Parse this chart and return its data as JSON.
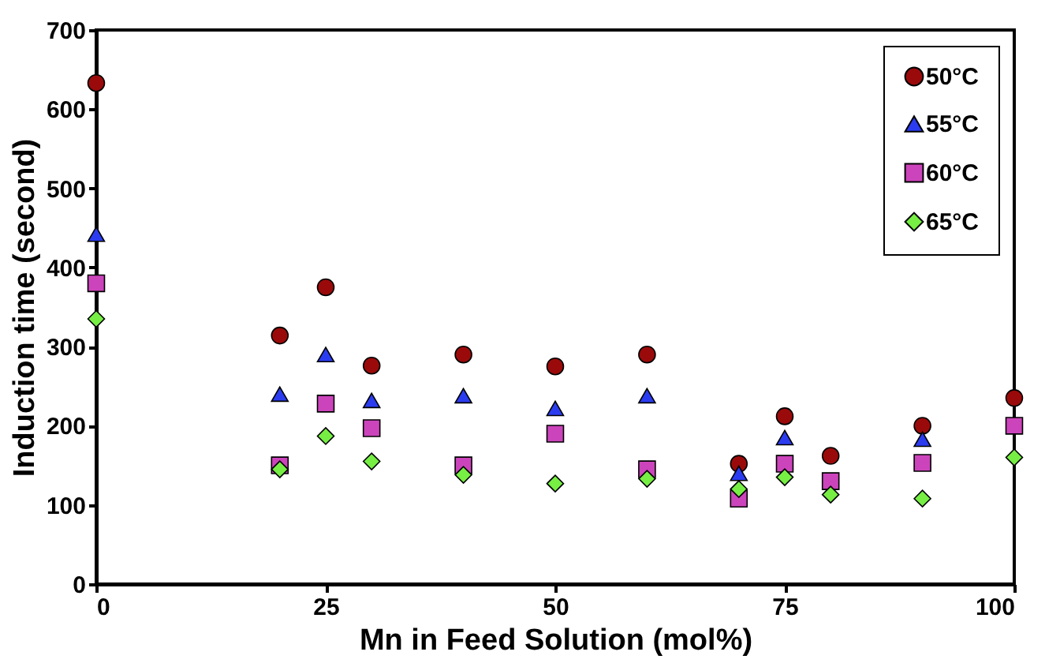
{
  "chart_data": {
    "type": "scatter",
    "xlabel": "Mn in Feed Solution (mol%)",
    "ylabel": "Induction time (second)",
    "x": [
      0,
      20,
      25,
      30,
      40,
      50,
      60,
      70,
      75,
      80,
      90,
      100
    ],
    "series": [
      {
        "name": "50°C",
        "color": "#9b0a0a",
        "marker": "circle",
        "values": [
          633,
          314,
          375,
          276,
          290,
          275,
          290,
          152,
          212,
          162,
          200,
          235
        ]
      },
      {
        "name": "55°C",
        "color": "#2b3cf0",
        "marker": "triangle",
        "values": [
          442,
          240,
          290,
          232,
          238,
          222,
          238,
          140,
          185,
          null,
          183,
          null
        ]
      },
      {
        "name": "60°C",
        "color": "#cc44bb",
        "marker": "square",
        "values": [
          380,
          150,
          228,
          197,
          150,
          190,
          145,
          108,
          152,
          130,
          153,
          200
        ]
      },
      {
        "name": "65°C",
        "color": "#77ee44",
        "marker": "diamond",
        "values": [
          335,
          145,
          187,
          155,
          138,
          127,
          133,
          120,
          135,
          113,
          108,
          160
        ]
      }
    ],
    "xlim": [
      0,
      100
    ],
    "xticks": [
      0,
      25,
      50,
      75,
      100
    ],
    "ylim": [
      0,
      700
    ],
    "yticks": [
      0,
      100,
      200,
      300,
      400,
      500,
      600,
      700
    ],
    "grid": false,
    "legend": "top right"
  }
}
